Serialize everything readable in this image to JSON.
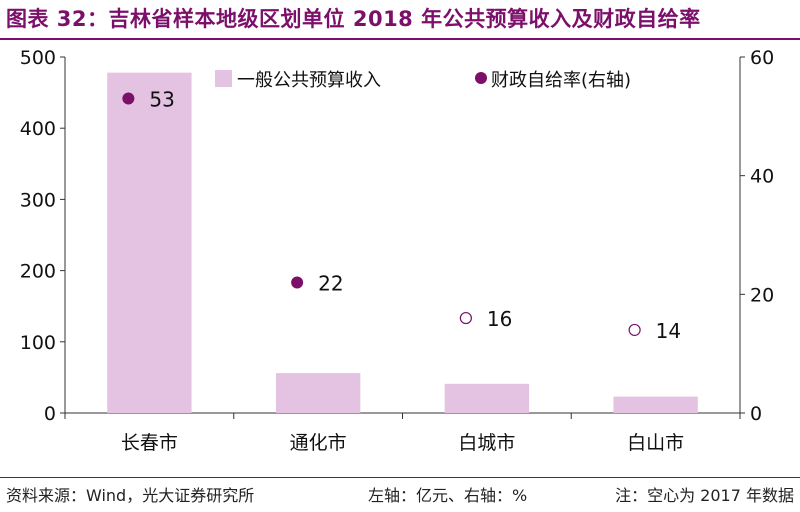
{
  "figure_title": "图表 32：吉林省样本地级区划单位 2018 年公共预算收入及财政自给率",
  "colors": {
    "bar": "#e3c3e1",
    "marker": "#7b0f6a",
    "title": "#7b0f6a",
    "axis": "#333333"
  },
  "chart_data": {
    "type": "bar",
    "categories": [
      "长春市",
      "通化市",
      "白城市",
      "白山市"
    ],
    "series": [
      {
        "name": "一般公共预算收入",
        "type": "bar",
        "axis": "left",
        "values": [
          478,
          56,
          41,
          23
        ]
      },
      {
        "name": "财政自给率(右轴)",
        "type": "scatter",
        "axis": "right",
        "values": [
          53,
          22,
          16,
          14
        ],
        "labels": [
          "53",
          "22",
          "16",
          "14"
        ],
        "hollow": [
          false,
          false,
          true,
          true
        ]
      }
    ],
    "y_left": {
      "lim": [
        0,
        500
      ],
      "ticks": [
        "0",
        "100",
        "200",
        "300",
        "400",
        "500"
      ]
    },
    "y_right": {
      "lim": [
        0,
        60
      ],
      "ticks": [
        "0",
        "20",
        "40",
        "60"
      ]
    },
    "legend_position": "top",
    "grid": false
  },
  "footer": {
    "source": "资料来源：Wind，光大证券研究所",
    "units": "左轴：亿元、右轴：%",
    "note": "注：空心为 2017 年数据"
  }
}
